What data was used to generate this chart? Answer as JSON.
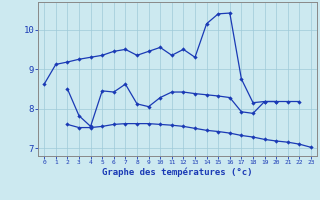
{
  "line1_x": [
    0,
    1,
    2,
    3,
    4,
    5,
    6,
    7,
    8,
    9,
    10,
    11,
    12,
    13,
    14,
    15,
    16,
    17,
    18,
    19,
    20,
    21,
    22
  ],
  "line1_y": [
    8.62,
    9.12,
    9.18,
    9.25,
    9.3,
    9.35,
    9.45,
    9.5,
    9.35,
    9.45,
    9.55,
    9.35,
    9.5,
    9.3,
    10.15,
    10.4,
    10.42,
    8.75,
    8.15,
    8.18,
    8.18,
    8.18,
    8.18
  ],
  "line2_x": [
    2,
    3,
    4,
    5,
    6,
    7,
    8,
    9,
    10,
    11,
    12,
    13,
    14,
    15,
    16,
    17,
    18,
    19,
    20
  ],
  "line2_y": [
    8.5,
    7.82,
    7.55,
    8.45,
    8.42,
    8.62,
    8.12,
    8.05,
    8.28,
    8.42,
    8.42,
    8.38,
    8.35,
    8.32,
    8.28,
    7.92,
    7.88,
    8.18,
    8.18
  ],
  "line3_x": [
    2,
    3,
    4,
    5,
    6,
    7,
    8,
    9,
    10,
    11,
    12,
    13,
    14,
    15,
    16,
    17,
    18,
    19,
    20,
    21,
    22,
    23
  ],
  "line3_y": [
    7.6,
    7.52,
    7.52,
    7.55,
    7.6,
    7.62,
    7.62,
    7.62,
    7.6,
    7.58,
    7.55,
    7.5,
    7.45,
    7.42,
    7.38,
    7.32,
    7.28,
    7.22,
    7.18,
    7.15,
    7.1,
    7.02
  ],
  "bg_color": "#cce9f0",
  "line_color": "#1a3ab5",
  "grid_color": "#9fcad8",
  "xlabel": "Graphe des températures (°c)",
  "ylim": [
    6.8,
    10.7
  ],
  "xlim": [
    -0.5,
    23.5
  ],
  "yticks": [
    7,
    8,
    9,
    10
  ],
  "xticks": [
    0,
    1,
    2,
    3,
    4,
    5,
    6,
    7,
    8,
    9,
    10,
    11,
    12,
    13,
    14,
    15,
    16,
    17,
    18,
    19,
    20,
    21,
    22,
    23
  ]
}
